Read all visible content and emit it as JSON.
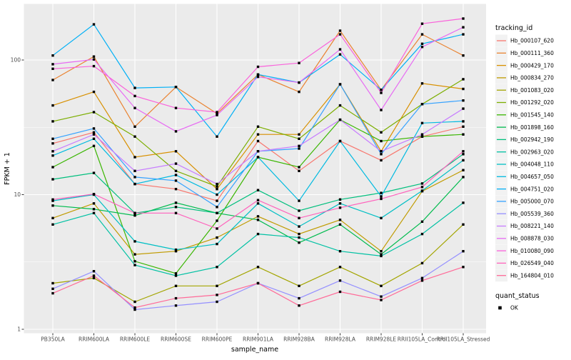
{
  "figure": {
    "x_axis_title": "sample_name",
    "y_axis_title": "FPKM + 1",
    "color_legend_title": "tracking_id",
    "quant_legend": {
      "title": "quant_status",
      "items": [
        {
          "label": "OK",
          "shape": "black-filled-square"
        }
      ]
    },
    "colors": {
      "panel_background": "#EBEBEB",
      "grid": "#FFFFFF",
      "axis_text": "#4D4D4D",
      "tick_mark": "#333333",
      "point": "#000000",
      "legend_key_background": "#F2F2F2"
    }
  },
  "chart_data": {
    "type": "line",
    "title": "",
    "xlabel": "sample_name",
    "ylabel": "FPKM + 1",
    "x_scale": "categorical",
    "y_scale": "log10",
    "y_ticks": [
      1,
      10,
      100
    ],
    "ylim": [
      0.93,
      260
    ],
    "grid": true,
    "legend_position": "right",
    "point_shape": "filled-square",
    "point_color": "#000000",
    "categories": [
      "PB350LA",
      "RRIM600LA",
      "RRIM600LE",
      "RRIM600SE",
      "RRIM600PE",
      "RRIM901LA",
      "RRIM928BA",
      "RRIM928LA",
      "RRIM928LE",
      "RRII105LA_Control",
      "RRII105LA_Stressed"
    ],
    "series": [
      {
        "name": "Hb_000107_620",
        "color": "#F8766D",
        "values": [
          24,
          29,
          12,
          11,
          9,
          25,
          15,
          25,
          18,
          27,
          32
        ]
      },
      {
        "name": "Hb_000111_360",
        "color": "#EA8331",
        "values": [
          71,
          106,
          32,
          63,
          40,
          78,
          58,
          165,
          60,
          155,
          108
        ]
      },
      {
        "name": "Hb_000429_170",
        "color": "#D89000",
        "values": [
          46,
          58,
          19,
          21,
          11,
          28,
          28,
          66,
          21,
          67,
          61
        ]
      },
      {
        "name": "Hb_000834_270",
        "color": "#C09B00",
        "values": [
          6.7,
          8.6,
          3.6,
          3.8,
          4.8,
          6.9,
          5.1,
          6.5,
          3.8,
          10.6,
          15.2
        ]
      },
      {
        "name": "Hb_001083_020",
        "color": "#A3A500",
        "values": [
          2.2,
          2.4,
          1.6,
          2.1,
          2.1,
          2.9,
          2.1,
          2.9,
          2.1,
          3.1,
          6.0
        ]
      },
      {
        "name": "Hb_001292_020",
        "color": "#7CAE00",
        "values": [
          35,
          41,
          27,
          15,
          11.5,
          32,
          26,
          46,
          29,
          47,
          72
        ]
      },
      {
        "name": "Hb_001545_140",
        "color": "#39B600",
        "values": [
          16,
          23,
          3.2,
          2.6,
          6.4,
          19,
          16,
          36,
          25,
          27,
          28
        ]
      },
      {
        "name": "Hb_001898_160",
        "color": "#00BB4E",
        "values": [
          8.3,
          7.8,
          7.0,
          8.7,
          7.3,
          6.5,
          4.4,
          6.0,
          3.6,
          6.3,
          13.5
        ]
      },
      {
        "name": "Hb_002942_190",
        "color": "#00BF7D",
        "values": [
          13,
          14.5,
          7.3,
          8.1,
          7.3,
          10.8,
          7.6,
          9.2,
          10.3,
          12.1,
          20
        ]
      },
      {
        "name": "Hb_002963_020",
        "color": "#00C1A3",
        "values": [
          6.0,
          7.3,
          3.0,
          2.5,
          2.9,
          5.1,
          4.8,
          3.8,
          3.5,
          5.1,
          8.7
        ]
      },
      {
        "name": "Hb_004048_110",
        "color": "#00BFC4",
        "values": [
          9.0,
          10.0,
          4.5,
          3.9,
          4.3,
          8.6,
          5.8,
          8.6,
          6.7,
          10.7,
          18
        ]
      },
      {
        "name": "Hb_004657_050",
        "color": "#00BAE0",
        "values": [
          19.5,
          26,
          12,
          14,
          10,
          19,
          9.0,
          25,
          9.7,
          34,
          35
        ]
      },
      {
        "name": "Hb_004751_020",
        "color": "#00B0F6",
        "values": [
          108,
          184,
          62,
          63,
          27,
          78,
          68,
          110,
          60,
          132,
          155
        ]
      },
      {
        "name": "Hb_005000_070",
        "color": "#35A2FF",
        "values": [
          26,
          31,
          13.5,
          12.7,
          8.1,
          21,
          22,
          66,
          20,
          47,
          50
        ]
      },
      {
        "name": "Hb_005539_360",
        "color": "#9590FF",
        "values": [
          2.0,
          2.7,
          1.4,
          1.5,
          1.6,
          2.2,
          1.7,
          2.3,
          1.75,
          2.4,
          3.8
        ]
      },
      {
        "name": "Hb_008221_140",
        "color": "#C77CFF",
        "values": [
          21,
          28,
          15,
          17,
          12,
          21,
          23,
          36,
          21,
          28,
          43.5
        ]
      },
      {
        "name": "Hb_008878_030",
        "color": "#E76BF3",
        "values": [
          93,
          101,
          44,
          29.5,
          39,
          75,
          68,
          120,
          42.5,
          125,
          175
        ]
      },
      {
        "name": "Hb_010080_090",
        "color": "#FA62DB",
        "values": [
          86,
          90,
          54,
          44,
          41,
          89,
          95,
          155,
          57,
          186,
          203
        ]
      },
      {
        "name": "Hb_026549_040",
        "color": "#FF62BC",
        "values": [
          9.2,
          10.1,
          7.3,
          7.3,
          5.6,
          9.1,
          6.7,
          8.0,
          9.3,
          11.4,
          21
        ]
      },
      {
        "name": "Hb_164804_010",
        "color": "#FF6A98",
        "values": [
          1.85,
          2.5,
          1.45,
          1.7,
          1.8,
          2.2,
          1.5,
          1.9,
          1.65,
          2.3,
          2.9
        ]
      }
    ]
  }
}
